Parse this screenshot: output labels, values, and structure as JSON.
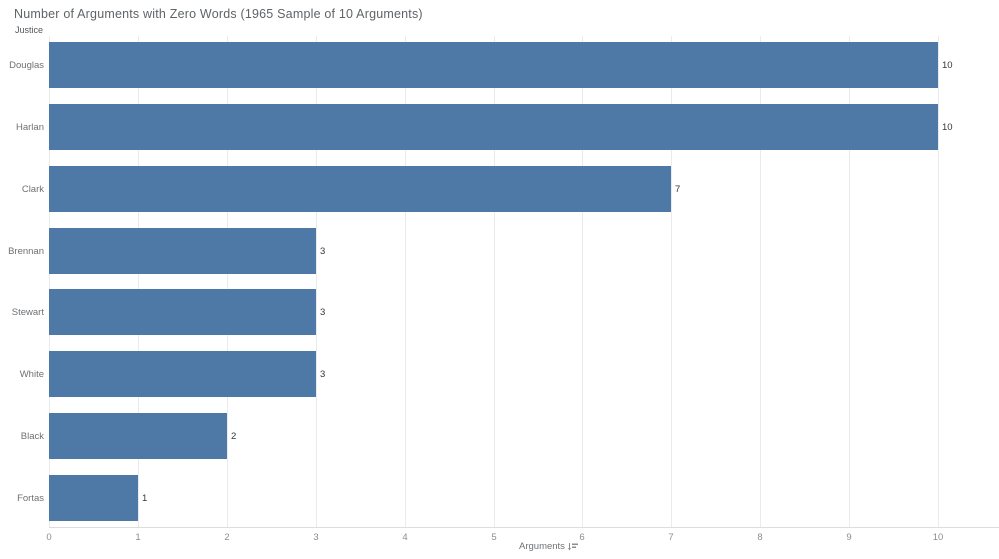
{
  "chart_data": {
    "type": "bar",
    "orientation": "horizontal",
    "title": "Number of Arguments with Zero Words (1965 Sample of 10 Arguments)",
    "ylabel": "Justice",
    "xlabel": "Arguments",
    "categories": [
      "Douglas",
      "Harlan",
      "Clark",
      "Brennan",
      "Stewart",
      "White",
      "Black",
      "Fortas"
    ],
    "values": [
      10,
      10,
      7,
      3,
      3,
      3,
      2,
      1
    ],
    "value_labels": [
      "10",
      "10",
      "7",
      "3",
      "3",
      "3",
      "2",
      "1"
    ],
    "xlim": [
      0,
      10
    ],
    "x_ticks": [
      "0",
      "1",
      "2",
      "3",
      "4",
      "5",
      "6",
      "7",
      "8",
      "9",
      "10"
    ],
    "grid": true,
    "legend": "none",
    "sort": "descending"
  },
  "axis_label": {
    "text": "Arguments",
    "sort_icon": "sort-descending-icon"
  },
  "colors": {
    "bar": "#4e79a7",
    "gridline": "#eaebec",
    "axis_line": "#dcdddd",
    "title_text": "#5f6468",
    "category_text": "#6d7175",
    "value_text": "#33373b",
    "tick_text": "#8a8e92",
    "background": "#ffffff"
  }
}
